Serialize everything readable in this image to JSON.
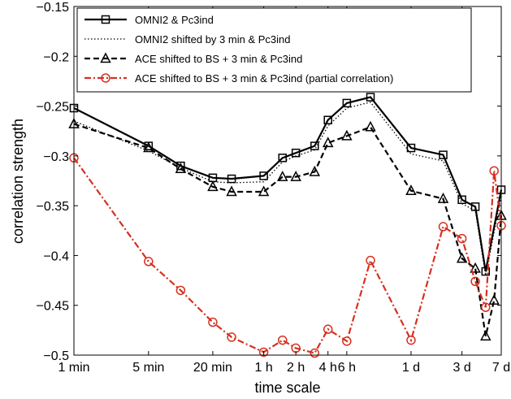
{
  "chart_data": {
    "type": "line",
    "title": "",
    "xlabel": "time scale",
    "ylabel": "correlation strength",
    "xscale": "log",
    "x_unit": "minutes",
    "ylim": [
      -0.5,
      -0.15
    ],
    "yticks": [
      -0.5,
      -0.45,
      -0.4,
      -0.35,
      -0.3,
      -0.25,
      -0.2,
      -0.15
    ],
    "ytick_labels": [
      "−0.5",
      "−0.45",
      "−0.4",
      "−0.35",
      "−0.3",
      "−0.25",
      "−0.2",
      "−0.15"
    ],
    "xticks": [
      {
        "label": "1 min",
        "value": 1
      },
      {
        "label": "5 min",
        "value": 5
      },
      {
        "label": "20 min",
        "value": 20
      },
      {
        "label": "1 h",
        "value": 60
      },
      {
        "label": "2 h",
        "value": 120
      },
      {
        "label": "4 h",
        "value": 240
      },
      {
        "label": "6 h",
        "value": 360
      },
      {
        "label": "1 d",
        "value": 1440
      },
      {
        "label": "3 d",
        "value": 4320
      },
      {
        "label": "7 d",
        "value": 10080
      }
    ],
    "grid": false,
    "legend_position": "top-left",
    "series": [
      {
        "name": "OMNI2 & Pc3ind",
        "color": "#000000",
        "line_style": "solid",
        "marker": "square",
        "x": [
          1,
          5,
          10,
          20,
          30,
          60,
          90,
          120,
          180,
          240,
          360,
          600,
          1440,
          2880,
          4320,
          5760,
          7200,
          10080
        ],
        "y": [
          -0.252,
          -0.29,
          -0.31,
          -0.322,
          -0.323,
          -0.32,
          -0.302,
          -0.297,
          -0.29,
          -0.264,
          -0.247,
          -0.241,
          -0.292,
          -0.299,
          -0.344,
          -0.351,
          -0.416,
          -0.334
        ]
      },
      {
        "name": "OMNI2 shifted by 3 min & Pc3ind",
        "color": "#000000",
        "line_style": "dotted",
        "marker": "none",
        "x": [
          1,
          5,
          10,
          20,
          30,
          60,
          90,
          120,
          180,
          240,
          360,
          600,
          1440,
          2880,
          4320,
          5760,
          7200,
          10080
        ],
        "y": [
          -0.265,
          -0.295,
          -0.312,
          -0.326,
          -0.327,
          -0.326,
          -0.306,
          -0.3,
          -0.294,
          -0.27,
          -0.252,
          -0.246,
          -0.298,
          -0.305,
          -0.348,
          -0.355,
          -0.42,
          -0.34
        ]
      },
      {
        "name": "ACE shifted to BS + 3 min & Pc3ind",
        "color": "#000000",
        "line_style": "dashed",
        "marker": "triangle",
        "x": [
          1,
          5,
          10,
          20,
          30,
          60,
          90,
          120,
          180,
          240,
          360,
          600,
          1440,
          2880,
          4320,
          5760,
          7200,
          8640,
          10080
        ],
        "y": [
          -0.268,
          -0.292,
          -0.313,
          -0.331,
          -0.336,
          -0.336,
          -0.321,
          -0.321,
          -0.316,
          -0.287,
          -0.28,
          -0.271,
          -0.335,
          -0.343,
          -0.403,
          -0.413,
          -0.481,
          -0.445,
          -0.36
        ]
      },
      {
        "name": "ACE shifted to BS + 3 min & Pc3ind (partial correlation)",
        "color": "#d7301f",
        "line_style": "dashdot",
        "marker": "circle",
        "x": [
          1,
          5,
          10,
          20,
          30,
          60,
          90,
          120,
          180,
          240,
          360,
          600,
          1440,
          2880,
          4320,
          5760,
          7200,
          8640,
          10080
        ],
        "y": [
          -0.302,
          -0.406,
          -0.435,
          -0.467,
          -0.482,
          -0.497,
          -0.485,
          -0.493,
          -0.498,
          -0.474,
          -0.486,
          -0.405,
          -0.485,
          -0.371,
          -0.383,
          -0.426,
          -0.452,
          -0.315,
          -0.37
        ]
      }
    ]
  }
}
